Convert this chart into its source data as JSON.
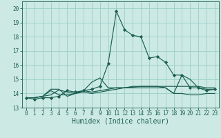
{
  "xlabel": "Humidex (Indice chaleur)",
  "xlim": [
    -0.5,
    23.5
  ],
  "ylim": [
    13.0,
    20.5
  ],
  "yticks": [
    13,
    14,
    15,
    16,
    17,
    18,
    19,
    20
  ],
  "xticks": [
    0,
    1,
    2,
    3,
    4,
    5,
    6,
    7,
    8,
    9,
    10,
    11,
    12,
    13,
    14,
    15,
    16,
    17,
    18,
    19,
    20,
    21,
    22,
    23
  ],
  "bg_color": "#cce9e4",
  "line_color": "#1a5f50",
  "grid_color": "#99cfc7",
  "series": [
    [
      13.7,
      13.6,
      13.7,
      13.7,
      13.8,
      14.2,
      14.1,
      14.2,
      14.3,
      14.5,
      16.1,
      19.8,
      18.5,
      18.1,
      18.0,
      16.5,
      16.6,
      16.2,
      15.3,
      15.3,
      14.4,
      14.4,
      14.2,
      14.3
    ],
    [
      13.7,
      13.7,
      13.8,
      13.9,
      14.25,
      14.1,
      14.0,
      14.2,
      14.8,
      15.1,
      14.4,
      14.4,
      14.4,
      14.45,
      14.5,
      14.5,
      14.5,
      14.5,
      14.5,
      14.5,
      14.5,
      14.5,
      14.4,
      14.4
    ],
    [
      13.7,
      13.7,
      13.8,
      14.3,
      14.3,
      13.8,
      14.0,
      14.1,
      14.0,
      14.1,
      14.2,
      14.3,
      14.4,
      14.5,
      14.5,
      14.5,
      14.5,
      14.4,
      14.0,
      15.3,
      15.0,
      14.4,
      14.3,
      14.3
    ],
    [
      13.7,
      13.7,
      13.8,
      14.2,
      13.9,
      13.9,
      14.0,
      14.2,
      14.1,
      14.2,
      14.3,
      14.4,
      14.4,
      14.4,
      14.4,
      14.4,
      14.4,
      14.4,
      14.0,
      14.0,
      13.9,
      13.9,
      14.0,
      14.0
    ]
  ],
  "marker_series": 0,
  "marker_style": "D",
  "marker_size": 2.2,
  "tick_fontsize": 5.5,
  "xlabel_fontsize": 7.0,
  "linewidth": 0.85
}
